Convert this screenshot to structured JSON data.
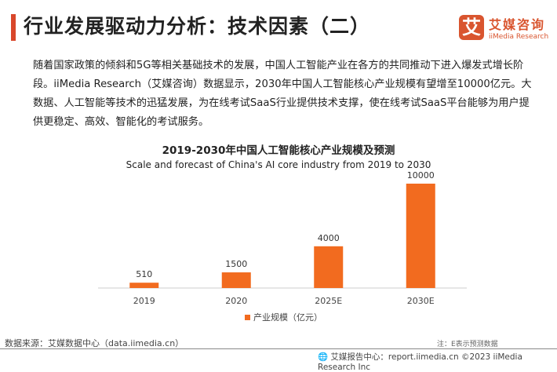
{
  "header": {
    "title": "行业发展驱动力分析：技术因素（二）",
    "logo_mark": "艾",
    "logo_cn": "艾媒咨询",
    "logo_en": "iiMedia Research"
  },
  "body_text": "随着国家政策的倾斜和5G等相关基础技术的发展，中国人工智能产业在各方的共同推动下进入爆发式增长阶段。iiMedia Research（艾媒咨询）数据显示，2030年中国人工智能核心产业规模有望增至10000亿元。大数据、人工智能等技术的迅猛发展，为在线考试SaaS行业提供技术支撑，使在线考试SaaS平台能够为用户提供更稳定、高效、智能化的考试服务。",
  "chart_data": {
    "type": "bar",
    "title": "2019-2030年中国人工智能核心产业规模及预测",
    "subtitle": "Scale and forecast of China's AI core industry from 2019 to 2030",
    "categories": [
      "2019",
      "2020",
      "2025E",
      "2030E"
    ],
    "series": [
      {
        "name": "产业规模（亿元）",
        "values": [
          510,
          1500,
          4000,
          10000
        ]
      }
    ],
    "ylim": [
      0,
      10000
    ],
    "color": "#f26b1f",
    "grid": false,
    "legend": "bottom"
  },
  "footer": {
    "source": "数据来源：艾媒数据中心（data.iimedia.cn）",
    "note": "注：E表示预测数据",
    "report": "艾媒报告中心：report.iimedia.cn ©2023 iiMedia Research Inc"
  }
}
